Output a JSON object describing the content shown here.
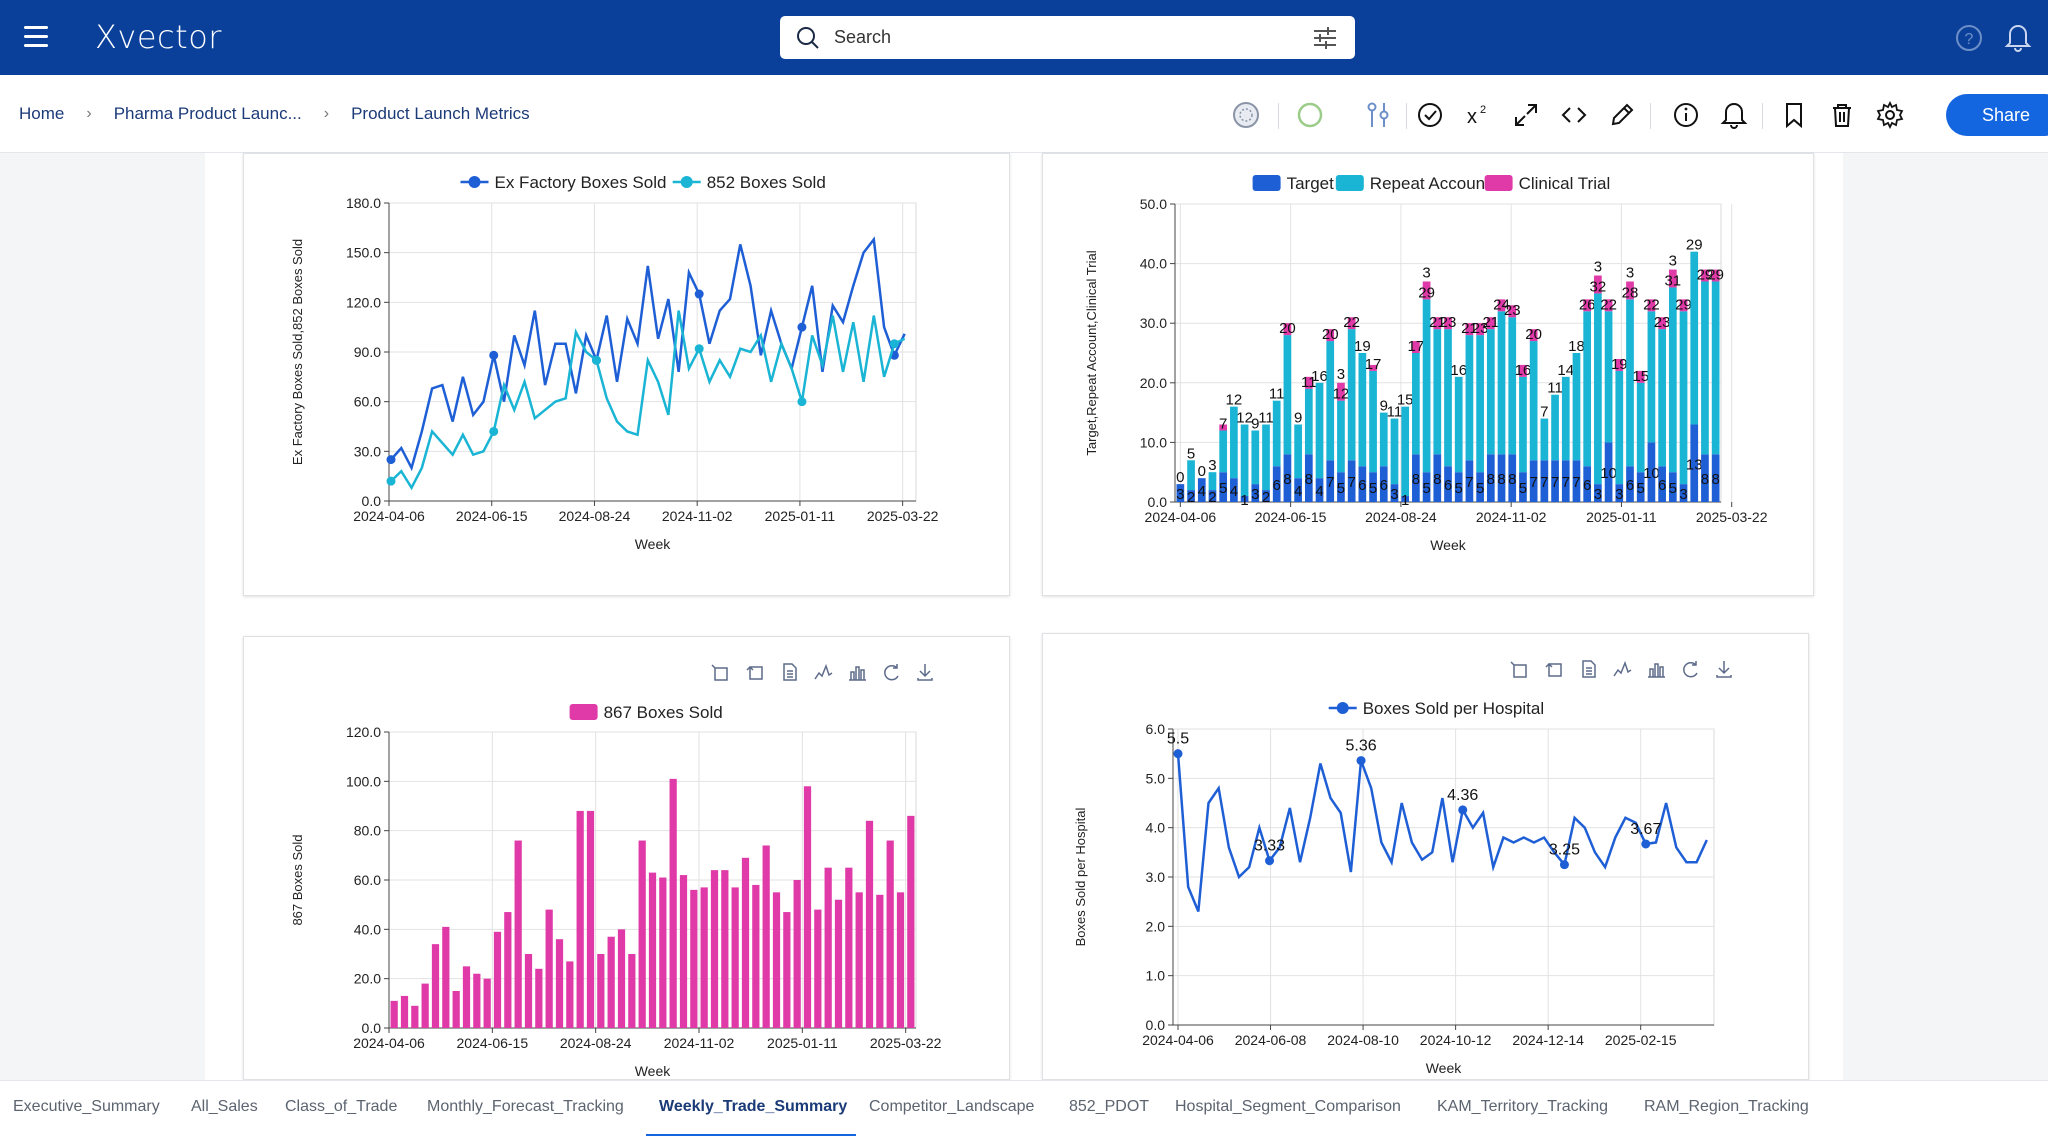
{
  "app": {
    "logo": "Xvector",
    "search_placeholder": "Search",
    "share_label": "Share"
  },
  "breadcrumb": [
    "Home",
    "Pharma Product Launc...",
    "Product Launch Metrics"
  ],
  "tabs": [
    "Executive_Summary",
    "All_Sales",
    "Class_of_Trade",
    "Monthly_Forecast_Tracking",
    "Weekly_Trade_Summary",
    "Competitor_Landscape",
    "852_PDOT",
    "Hospital_Segment_Comparison",
    "KAM_Territory_Tracking",
    "RAM_Region_Tracking"
  ],
  "active_tab": "Weekly_Trade_Summary",
  "colors": {
    "topbar": "#0a409a",
    "accent": "#1466e0",
    "series_blue": "#1f5fd6",
    "series_cyan": "#1ab4d4",
    "series_pink": "#e03aa8"
  },
  "chart_data": [
    {
      "type": "line",
      "title": "",
      "xlabel": "Week",
      "ylabel": "Ex Factory Boxes Sold,852 Boxes Sold",
      "x_tick_labels": [
        "2024-04-06",
        "2024-06-15",
        "2024-08-24",
        "2024-11-02",
        "2025-01-11",
        "2025-03-22"
      ],
      "y_ticks": [
        "0.0",
        "30.0",
        "60.0",
        "90.0",
        "120.0",
        "150.0",
        "180.0"
      ],
      "ylim": [
        0,
        180
      ],
      "grid": true,
      "legend": "top-center",
      "series": [
        {
          "name": "Ex Factory Boxes Sold",
          "color": "#1f5fd6",
          "values": [
            25,
            32,
            20,
            42,
            68,
            70,
            48,
            75,
            52,
            60,
            88,
            60,
            100,
            82,
            115,
            70,
            95,
            95,
            65,
            100,
            85,
            112,
            72,
            110,
            95,
            142,
            98,
            122,
            78,
            138,
            125,
            95,
            115,
            122,
            155,
            130,
            88,
            115,
            95,
            80,
            105,
            130,
            78,
            118,
            108,
            130,
            150,
            158,
            105,
            88,
            101
          ]
        },
        {
          "name": "852 Boxes Sold",
          "color": "#1ab4d4",
          "values": [
            12,
            18,
            8,
            20,
            42,
            35,
            28,
            40,
            28,
            30,
            42,
            70,
            55,
            72,
            50,
            55,
            60,
            62,
            102,
            90,
            85,
            62,
            48,
            42,
            40,
            85,
            72,
            52,
            115,
            80,
            92,
            72,
            85,
            75,
            92,
            90,
            100,
            72,
            95,
            80,
            60,
            100,
            82,
            112,
            78,
            108,
            72,
            112,
            75,
            95,
            98
          ]
        }
      ]
    },
    {
      "type": "bar",
      "stacked": true,
      "title": "",
      "xlabel": "Week",
      "ylabel": "Target,Repeat Account,Clinical Trial",
      "x_tick_labels": [
        "2024-04-06",
        "2024-06-15",
        "2024-08-24",
        "2024-11-02",
        "2025-01-11",
        "2025-03-22"
      ],
      "y_ticks": [
        "0.0",
        "10.0",
        "20.0",
        "30.0",
        "40.0",
        "50.0"
      ],
      "ylim": [
        0,
        50
      ],
      "grid": true,
      "legend": "top-center",
      "series_names": [
        "Target",
        "Repeat Account",
        "Clinical Trial"
      ],
      "target": [
        3,
        2,
        4,
        2,
        5,
        4,
        1,
        3,
        2,
        6,
        8,
        4,
        8,
        4,
        7,
        5,
        7,
        6,
        5,
        6,
        3,
        1,
        8,
        5,
        8,
        6,
        5,
        7,
        5,
        8,
        8,
        8,
        5,
        7,
        7,
        7,
        7,
        7,
        6,
        3,
        10,
        3,
        6,
        5,
        10,
        6,
        5,
        3,
        13,
        8,
        8
      ],
      "repeat": [
        0,
        5,
        0,
        3,
        7,
        12,
        12,
        9,
        11,
        11,
        20,
        9,
        11,
        16,
        20,
        12,
        22,
        19,
        17,
        9,
        11,
        15,
        17,
        29,
        21,
        23,
        16,
        21,
        23,
        21,
        24,
        23,
        16,
        20,
        7,
        11,
        14,
        18,
        26,
        32,
        22,
        19,
        28,
        15,
        22,
        23,
        31,
        29,
        29,
        29,
        29
      ],
      "clinical": [
        0,
        0,
        0,
        0,
        1,
        0,
        0,
        0,
        0,
        0,
        2,
        0,
        2,
        0,
        2,
        3,
        2,
        0,
        1,
        0,
        0,
        0,
        2,
        3,
        2,
        2,
        0,
        2,
        2,
        2,
        2,
        2,
        2,
        2,
        0,
        0,
        0,
        0,
        2,
        3,
        2,
        2,
        3,
        2,
        2,
        2,
        3,
        2,
        0,
        2,
        2
      ],
      "labels_shown": [
        "3",
        "29",
        "3",
        "32",
        "31",
        "29",
        "26",
        "28",
        "23",
        "21",
        "24",
        "22",
        "20",
        "16",
        "12",
        "8",
        "5",
        "4",
        "0",
        "11",
        "9",
        "7",
        "6",
        "2",
        "1"
      ]
    },
    {
      "type": "bar",
      "title": "",
      "xlabel": "Week",
      "ylabel": "867 Boxes Sold",
      "x_tick_labels": [
        "2024-04-06",
        "2024-06-15",
        "2024-08-24",
        "2024-11-02",
        "2025-01-11",
        "2025-03-22"
      ],
      "y_ticks": [
        "0.0",
        "20.0",
        "40.0",
        "60.0",
        "80.0",
        "100.0",
        "120.0"
      ],
      "ylim": [
        0,
        120
      ],
      "grid": true,
      "legend": "top-center",
      "series": [
        {
          "name": "867 Boxes Sold",
          "color": "#e03aa8",
          "values": [
            11,
            13,
            9,
            18,
            34,
            41,
            15,
            25,
            22,
            20,
            39,
            47,
            76,
            30,
            24,
            48,
            36,
            27,
            88,
            88,
            30,
            37,
            40,
            30,
            76,
            63,
            61,
            101,
            62,
            56,
            57,
            64,
            64,
            57,
            69,
            58,
            74,
            55,
            47,
            60,
            98,
            48,
            65,
            52,
            65,
            55,
            84,
            54,
            76,
            55,
            86
          ]
        }
      ]
    },
    {
      "type": "line",
      "title": "",
      "xlabel": "Week",
      "ylabel": "Boxes Sold per Hospital",
      "x_tick_labels": [
        "2024-04-06",
        "2024-06-08",
        "2024-08-10",
        "2024-10-12",
        "2024-12-14",
        "2025-02-15"
      ],
      "y_ticks": [
        "0.0",
        "1.0",
        "2.0",
        "3.0",
        "4.0",
        "5.0",
        "6.0"
      ],
      "ylim": [
        0,
        6
      ],
      "grid": true,
      "legend": "top-center",
      "series": [
        {
          "name": "Boxes Sold per Hospital",
          "color": "#1f5fd6",
          "values": [
            5.5,
            2.8,
            2.3,
            4.5,
            4.8,
            3.6,
            3.0,
            3.2,
            4.0,
            3.33,
            3.6,
            4.4,
            3.3,
            4.2,
            5.3,
            4.6,
            4.3,
            3.1,
            5.36,
            4.8,
            3.7,
            3.3,
            4.5,
            3.7,
            3.35,
            3.5,
            4.6,
            3.3,
            4.36,
            4.0,
            4.3,
            3.2,
            3.8,
            3.7,
            3.8,
            3.7,
            3.8,
            3.5,
            3.25,
            4.2,
            4.0,
            3.5,
            3.2,
            3.8,
            4.2,
            4.1,
            3.67,
            3.7,
            4.5,
            3.6,
            3.3,
            3.3,
            3.75
          ]
        }
      ],
      "point_labels": [
        {
          "index": 0,
          "text": "5.5"
        },
        {
          "index": 9,
          "text": "3.33"
        },
        {
          "index": 18,
          "text": "5.36"
        },
        {
          "index": 28,
          "text": "4.36"
        },
        {
          "index": 38,
          "text": "3.25"
        },
        {
          "index": 46,
          "text": "3.67"
        }
      ]
    }
  ]
}
